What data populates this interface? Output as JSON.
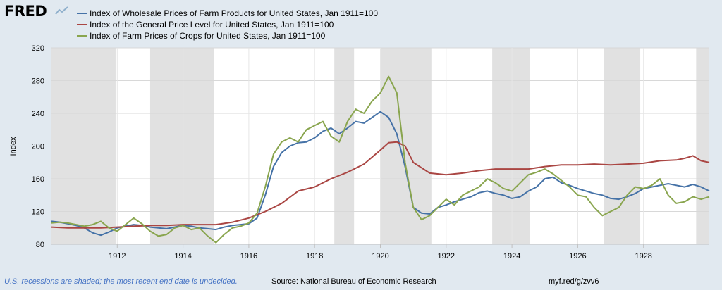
{
  "brand": "FRED",
  "legend": [
    {
      "label": "Index of Wholesale Prices of Farm Products for United States, Jan 1911=100",
      "color": "#4572a7"
    },
    {
      "label": "Index of the General Price Level for United States, Jan 1911=100",
      "color": "#aa4643"
    },
    {
      "label": "Index of Farm Prices of Crops for United States, Jan 1911=100",
      "color": "#89a54e"
    }
  ],
  "footer": {
    "note": "U.S. recessions are shaded; the most recent end date is undecided.",
    "source": "Source: National Bureau of Economic Research",
    "url": "myf.red/g/zvv6"
  },
  "chart_data": {
    "type": "line",
    "title": "",
    "xlabel": "",
    "ylabel": "Index",
    "xlim": [
      1910.0,
      1930.0
    ],
    "ylim": [
      80,
      320
    ],
    "yticks": [
      80,
      120,
      160,
      200,
      240,
      280,
      320
    ],
    "xticks": [
      1912,
      1914,
      1916,
      1918,
      1920,
      1922,
      1924,
      1926,
      1928
    ],
    "grid": true,
    "legend_position": "top-left",
    "recessions": [
      [
        1910.0,
        1911.95
      ],
      [
        1913.0,
        1914.95
      ],
      [
        1918.6,
        1919.2
      ],
      [
        1920.0,
        1921.55
      ],
      [
        1923.4,
        1924.55
      ],
      [
        1926.8,
        1927.9
      ],
      [
        1929.6,
        1930.0
      ]
    ],
    "series": [
      {
        "name": "Index of Wholesale Prices of Farm Products for United States, Jan 1911=100",
        "color": "#4572a7",
        "x": [
          1910.0,
          1910.25,
          1910.5,
          1910.75,
          1911.0,
          1911.25,
          1911.5,
          1911.75,
          1912.0,
          1912.25,
          1912.5,
          1912.75,
          1913.0,
          1913.25,
          1913.5,
          1913.75,
          1914.0,
          1914.25,
          1914.5,
          1914.75,
          1915.0,
          1915.25,
          1915.5,
          1915.75,
          1916.0,
          1916.25,
          1916.5,
          1916.75,
          1917.0,
          1917.25,
          1917.5,
          1917.75,
          1918.0,
          1918.25,
          1918.5,
          1918.75,
          1919.0,
          1919.25,
          1919.5,
          1919.75,
          1920.0,
          1920.25,
          1920.5,
          1920.75,
          1921.0,
          1921.25,
          1921.5,
          1921.75,
          1922.0,
          1922.25,
          1922.5,
          1922.75,
          1923.0,
          1923.25,
          1923.5,
          1923.75,
          1924.0,
          1924.25,
          1924.5,
          1924.75,
          1925.0,
          1925.25,
          1925.5,
          1925.75,
          1926.0,
          1926.25,
          1926.5,
          1926.75,
          1927.0,
          1927.25,
          1927.5,
          1927.75,
          1928.0,
          1928.25,
          1928.5,
          1928.75,
          1929.0,
          1929.25,
          1929.5,
          1929.75,
          1930.0
        ],
        "values": [
          108,
          107,
          105,
          103,
          100,
          94,
          91,
          95,
          100,
          102,
          104,
          103,
          101,
          100,
          99,
          101,
          103,
          102,
          100,
          99,
          98,
          101,
          103,
          104,
          105,
          112,
          140,
          175,
          192,
          200,
          204,
          205,
          210,
          218,
          222,
          215,
          222,
          230,
          228,
          235,
          242,
          235,
          215,
          175,
          125,
          118,
          117,
          125,
          128,
          132,
          135,
          138,
          143,
          145,
          142,
          140,
          136,
          138,
          145,
          150,
          160,
          162,
          155,
          152,
          148,
          145,
          142,
          140,
          136,
          135,
          138,
          142,
          148,
          150,
          152,
          154,
          152,
          150,
          153,
          150,
          145
        ]
      },
      {
        "name": "Index of the General Price Level for United States, Jan 1911=100",
        "color": "#aa4643",
        "x": [
          1910.0,
          1910.5,
          1911.0,
          1911.5,
          1912.0,
          1912.5,
          1913.0,
          1913.5,
          1914.0,
          1914.5,
          1915.0,
          1915.5,
          1916.0,
          1916.5,
          1917.0,
          1917.5,
          1918.0,
          1918.5,
          1919.0,
          1919.5,
          1920.0,
          1920.25,
          1920.5,
          1920.75,
          1921.0,
          1921.5,
          1922.0,
          1922.5,
          1923.0,
          1923.5,
          1924.0,
          1924.5,
          1925.0,
          1925.5,
          1926.0,
          1926.5,
          1927.0,
          1927.5,
          1928.0,
          1928.5,
          1929.0,
          1929.25,
          1929.5,
          1929.75,
          1930.0
        ],
        "values": [
          101,
          100,
          100,
          100,
          101,
          102,
          103,
          103,
          104,
          104,
          104,
          107,
          112,
          120,
          130,
          145,
          150,
          160,
          168,
          178,
          195,
          204,
          205,
          200,
          180,
          167,
          165,
          167,
          170,
          172,
          172,
          172,
          175,
          177,
          177,
          178,
          177,
          178,
          179,
          182,
          183,
          185,
          188,
          182,
          180
        ]
      },
      {
        "name": "Index of Farm Prices of Crops for United States, Jan 1911=100",
        "color": "#89a54e",
        "x": [
          1910.0,
          1910.25,
          1910.5,
          1910.75,
          1911.0,
          1911.25,
          1911.5,
          1911.75,
          1912.0,
          1912.25,
          1912.5,
          1912.75,
          1913.0,
          1913.25,
          1913.5,
          1913.75,
          1914.0,
          1914.25,
          1914.5,
          1914.75,
          1915.0,
          1915.25,
          1915.5,
          1915.75,
          1916.0,
          1916.25,
          1916.5,
          1916.75,
          1917.0,
          1917.25,
          1917.5,
          1917.75,
          1918.0,
          1918.25,
          1918.5,
          1918.75,
          1919.0,
          1919.25,
          1919.5,
          1919.75,
          1920.0,
          1920.25,
          1920.5,
          1920.75,
          1921.0,
          1921.25,
          1921.5,
          1921.75,
          1922.0,
          1922.25,
          1922.5,
          1922.75,
          1923.0,
          1923.25,
          1923.5,
          1923.75,
          1924.0,
          1924.25,
          1924.5,
          1924.75,
          1925.0,
          1925.25,
          1925.5,
          1925.75,
          1926.0,
          1926.25,
          1926.5,
          1926.75,
          1927.0,
          1927.25,
          1927.5,
          1927.75,
          1928.0,
          1928.25,
          1928.5,
          1928.75,
          1929.0,
          1929.25,
          1929.5,
          1929.75,
          1930.0
        ],
        "values": [
          106,
          107,
          106,
          104,
          102,
          104,
          108,
          100,
          96,
          104,
          112,
          105,
          96,
          90,
          92,
          100,
          103,
          98,
          100,
          90,
          82,
          92,
          100,
          102,
          106,
          118,
          150,
          190,
          205,
          210,
          205,
          220,
          225,
          230,
          212,
          205,
          230,
          245,
          240,
          255,
          265,
          285,
          265,
          180,
          125,
          110,
          115,
          125,
          135,
          128,
          140,
          145,
          150,
          160,
          155,
          148,
          145,
          155,
          165,
          168,
          172,
          166,
          158,
          150,
          140,
          138,
          125,
          115,
          120,
          125,
          140,
          150,
          148,
          152,
          160,
          140,
          130,
          132,
          138,
          135,
          138
        ]
      }
    ]
  }
}
